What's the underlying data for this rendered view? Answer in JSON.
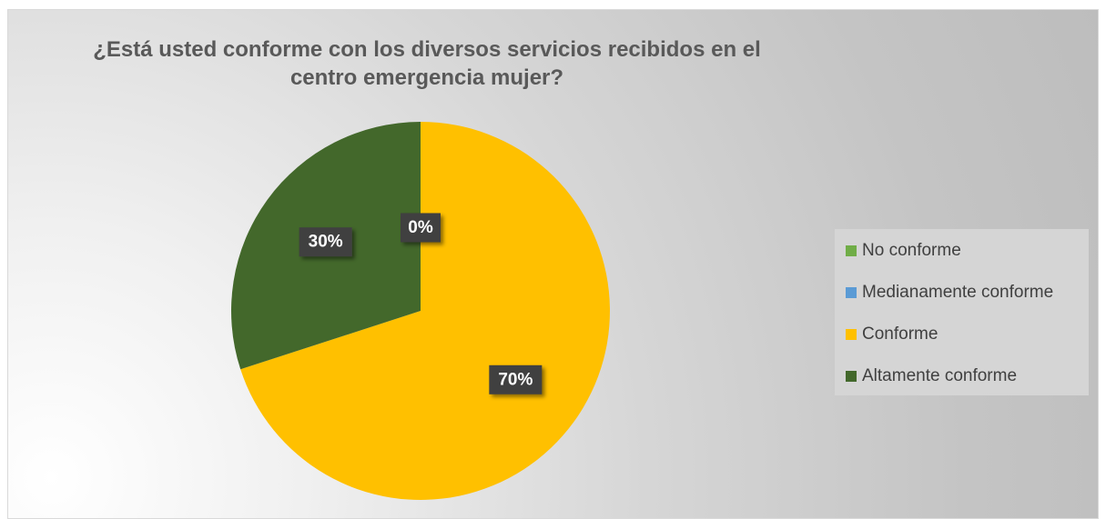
{
  "chart_data": {
    "type": "pie",
    "title": "¿Está usted conforme con los diversos servicios recibidos en el centro emergencia mujer?",
    "title_lines": [
      "¿Está usted conforme con los diversos servicios recibidos en el",
      "centro emergencia mujer?"
    ],
    "legend_position": "right",
    "slices": [
      {
        "label": "No conforme",
        "value": 0,
        "value_label": "",
        "color": "#70ad47"
      },
      {
        "label": "Medianamente conforme",
        "value": 0,
        "value_label": "0%",
        "color": "#5b9bd5"
      },
      {
        "label": "Conforme",
        "value": 70,
        "value_label": "70%",
        "color": "#ffc000"
      },
      {
        "label": "Altamente conforme",
        "value": 30,
        "value_label": "30%",
        "color": "#43682b"
      }
    ]
  }
}
